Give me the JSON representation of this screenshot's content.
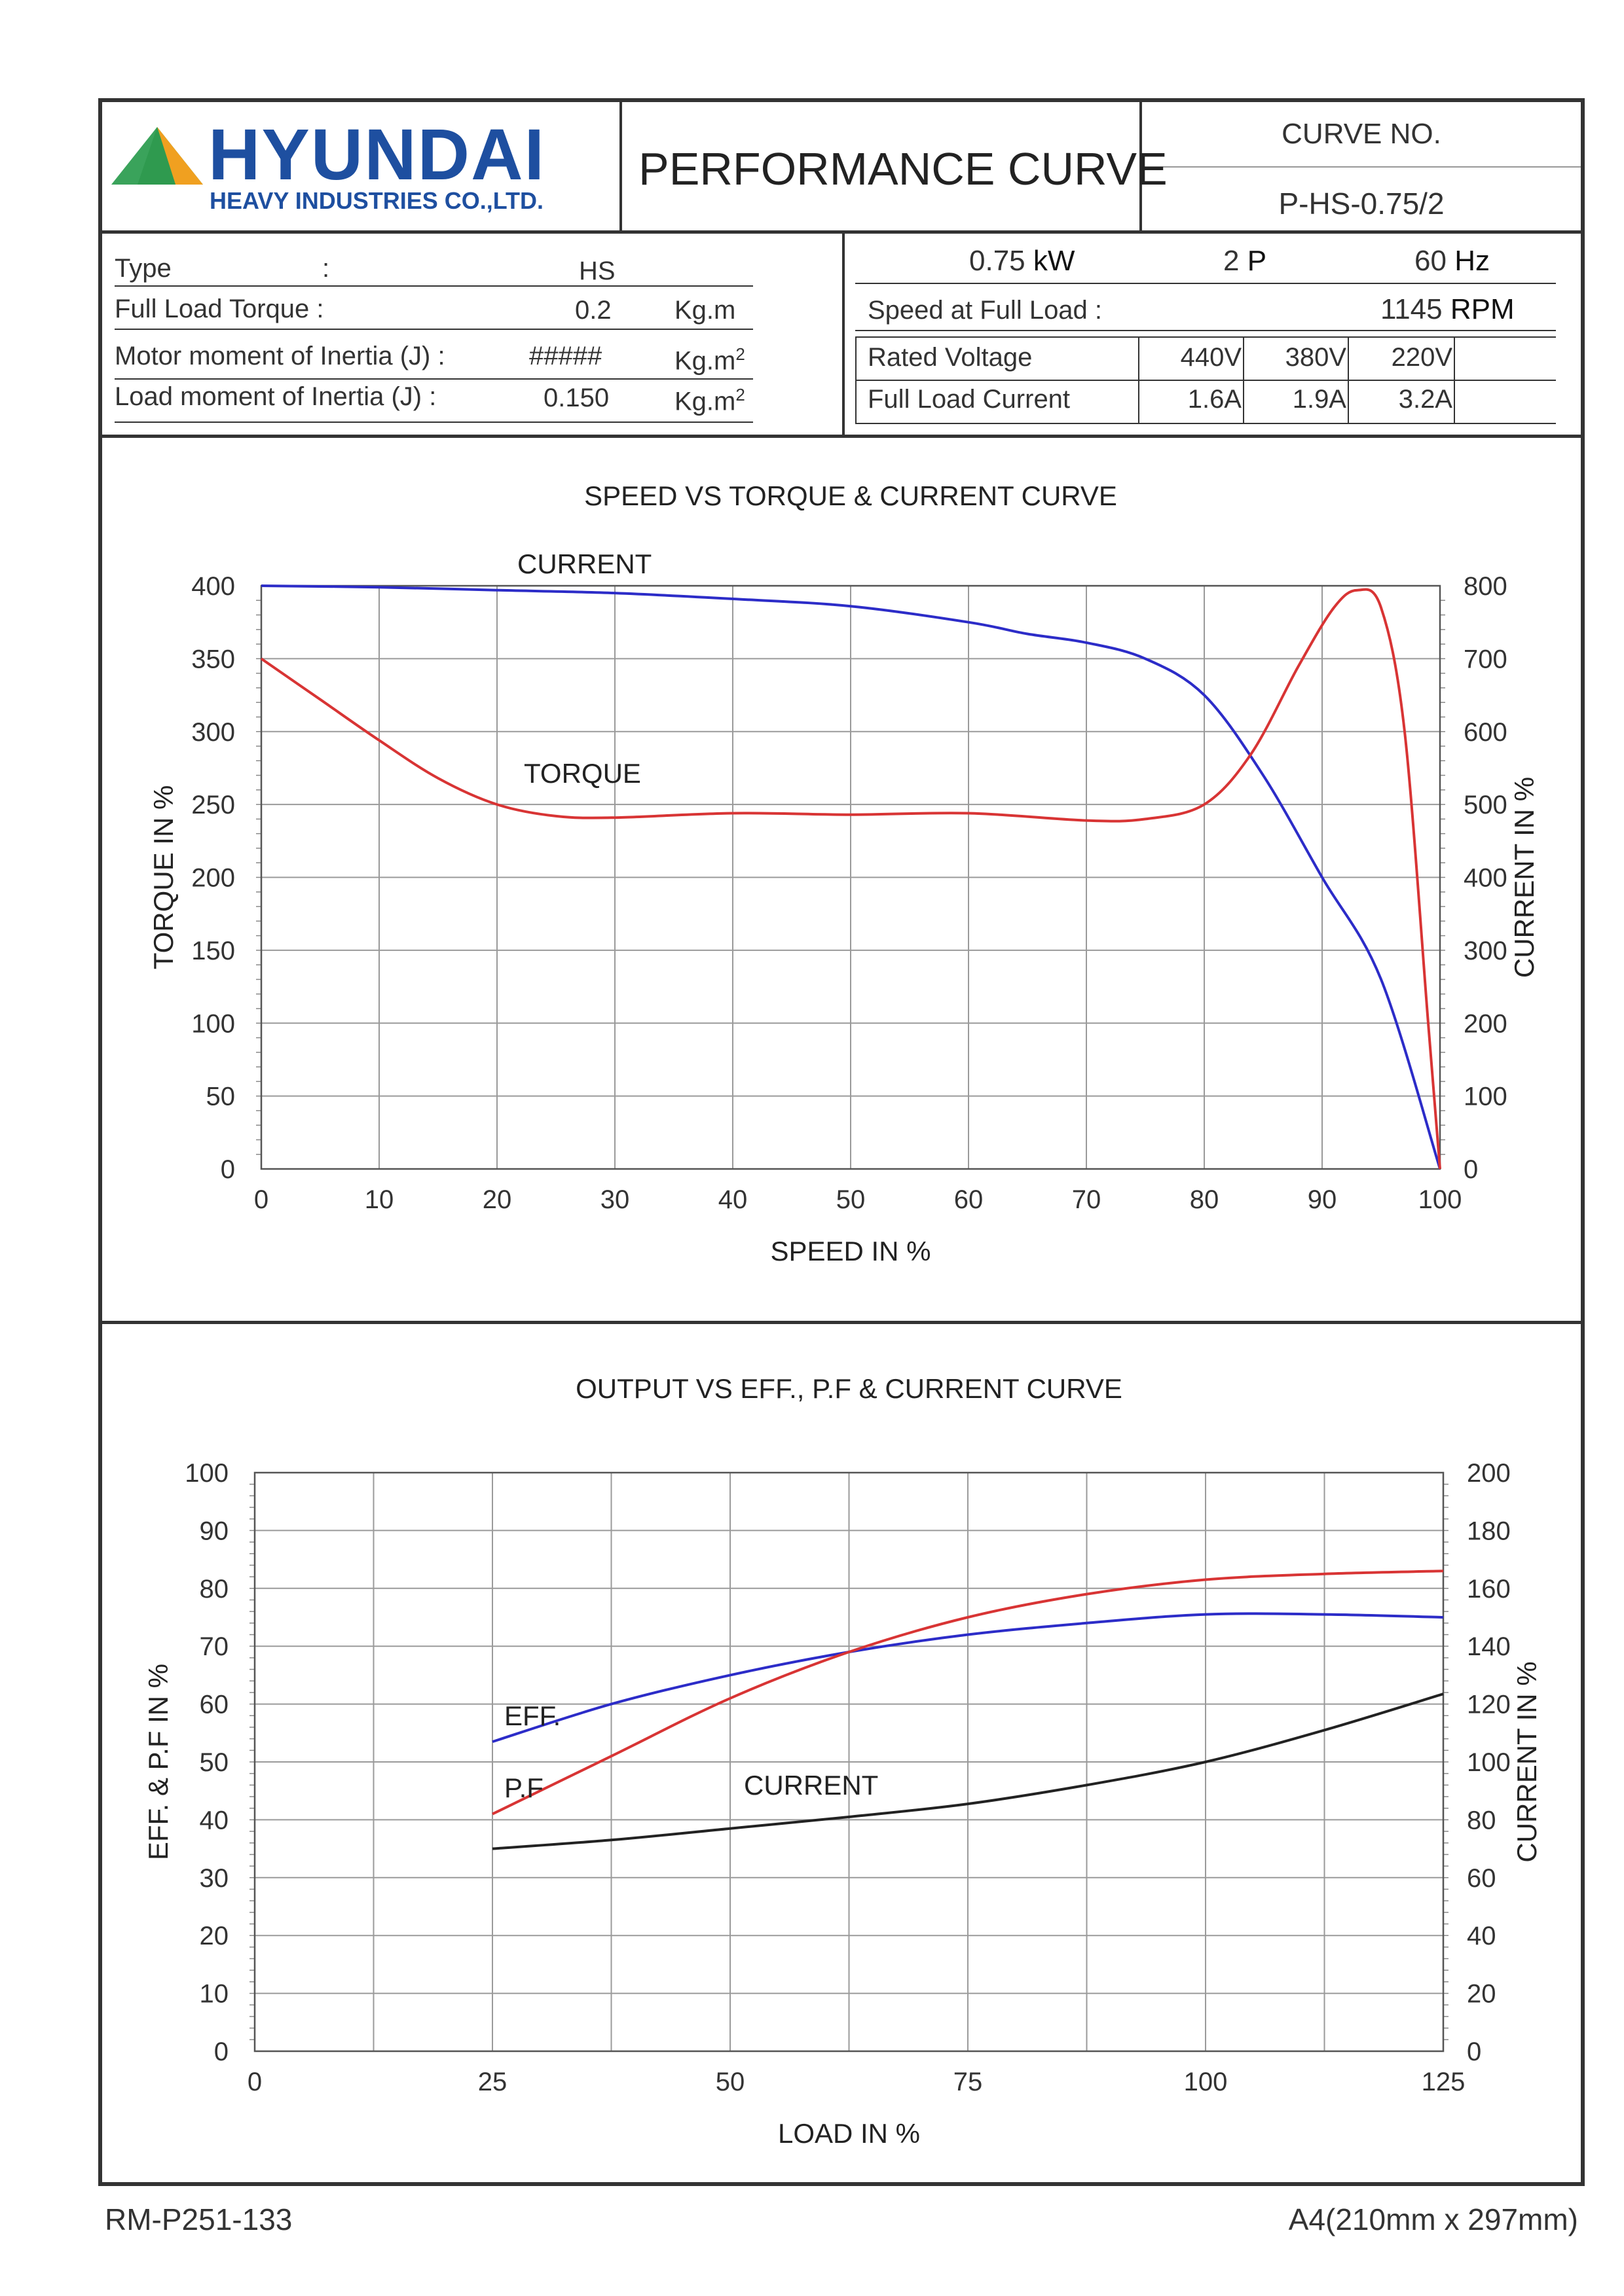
{
  "header": {
    "logo_text": "HYUNDAI",
    "logo_sub": "HEAVY INDUSTRIES CO.,LTD.",
    "title": "PERFORMANCE CURVE",
    "curve_no_label": "CURVE NO.",
    "curve_no": "P-HS-0.75/2",
    "colors": {
      "logo_blue": "#1e4fa0",
      "logo_green": "#3aa35b",
      "logo_orange": "#f0a020"
    }
  },
  "specs_left": {
    "rows": [
      {
        "label": "Type",
        "sep": ":",
        "value": "HS",
        "unit": ""
      },
      {
        "label": "Full Load Torque :",
        "sep": "",
        "value": "0.2",
        "unit": "Kg.m"
      },
      {
        "label": "Motor moment of Inertia (J) :",
        "sep": "",
        "value": "#####",
        "unit": "Kg.m",
        "unit_sup": "2"
      },
      {
        "label": "Load moment of Inertia (J) :",
        "sep": "",
        "value": "0.150",
        "unit": "Kg.m",
        "unit_sup": "2"
      }
    ]
  },
  "specs_right": {
    "power_value": "0.75",
    "power_unit": "kW",
    "poles_value": "2",
    "poles_unit": "P",
    "freq_value": "60",
    "freq_unit": "Hz",
    "speed_label": "Speed at Full Load :",
    "speed_value": "1145",
    "speed_unit": "RPM",
    "voltage_label": "Rated Voltage",
    "voltages": [
      "440V",
      "380V",
      "220V"
    ],
    "current_label": "Full Load Current",
    "currents": [
      "1.6A",
      "1.9A",
      "3.2A"
    ]
  },
  "chart_data": [
    {
      "type": "line",
      "title": "SPEED VS TORQUE & CURRENT CURVE",
      "xlabel": "SPEED IN %",
      "ylabel": "TORQUE IN %",
      "y2label": "CURRENT IN %",
      "xlim": [
        0,
        100
      ],
      "ylim": [
        0,
        400
      ],
      "y2lim": [
        0,
        800
      ],
      "xticks": [
        0,
        10,
        20,
        30,
        40,
        50,
        60,
        70,
        80,
        90,
        100
      ],
      "yticks": [
        0,
        50,
        100,
        150,
        200,
        250,
        300,
        350,
        400
      ],
      "y2ticks": [
        0,
        100,
        200,
        300,
        400,
        500,
        600,
        700,
        800
      ],
      "grid": true,
      "series": [
        {
          "name": "CURRENT",
          "axis": "right",
          "color": "#2c2cc8",
          "x": [
            0,
            10,
            20,
            30,
            40,
            50,
            60,
            65,
            70,
            75,
            80,
            85,
            90,
            95,
            100
          ],
          "y": [
            800,
            798,
            794,
            790,
            782,
            772,
            750,
            734,
            722,
            700,
            650,
            540,
            400,
            260,
            0
          ]
        },
        {
          "name": "TORQUE",
          "axis": "left",
          "color": "#d83434",
          "x": [
            0,
            5,
            10,
            15,
            20,
            25,
            30,
            40,
            50,
            60,
            70,
            75,
            80,
            84,
            88,
            91,
            93,
            95,
            97,
            99,
            100
          ],
          "y": [
            350,
            322,
            294,
            268,
            250,
            242,
            241,
            244,
            243,
            244,
            239,
            240,
            250,
            285,
            345,
            385,
            397,
            385,
            300,
            100,
            0
          ]
        }
      ]
    },
    {
      "type": "line",
      "title": "OUTPUT VS EFF., P.F & CURRENT CURVE",
      "xlabel": "LOAD IN %",
      "ylabel": "EFF. & P.F IN %",
      "y2label": "CURRENT IN %",
      "xlim": [
        0,
        125
      ],
      "ylim": [
        0,
        100
      ],
      "y2lim": [
        0,
        200
      ],
      "xticks": [
        0,
        25,
        50,
        75,
        100,
        125
      ],
      "yticks": [
        0,
        10,
        20,
        30,
        40,
        50,
        60,
        70,
        80,
        90,
        100
      ],
      "y2ticks": [
        0,
        20,
        40,
        60,
        80,
        100,
        120,
        140,
        160,
        180,
        200
      ],
      "grid": true,
      "series": [
        {
          "name": "EFF.",
          "axis": "left",
          "color": "#2c2cc8",
          "x": [
            25,
            37.5,
            50,
            62.5,
            75,
            87.5,
            100,
            112.5,
            125
          ],
          "y": [
            53.5,
            60,
            65,
            69,
            72,
            74,
            75.5,
            75.5,
            75
          ]
        },
        {
          "name": "P.F",
          "axis": "left",
          "color": "#d83434",
          "x": [
            25,
            37.5,
            50,
            62.5,
            75,
            87.5,
            100,
            112.5,
            125
          ],
          "y": [
            41,
            51,
            61,
            69,
            75,
            79,
            81.5,
            82.5,
            83
          ]
        },
        {
          "name": "CURRENT",
          "axis": "right",
          "color": "#222222",
          "x": [
            25,
            37.5,
            50,
            62.5,
            75,
            87.5,
            100,
            112.5,
            125
          ],
          "y": [
            70,
            73,
            77,
            81,
            85.5,
            92,
            100,
            111,
            123.5
          ]
        }
      ]
    }
  ],
  "footer": {
    "left": "RM-P251-133",
    "right": "A4(210mm x 297mm)"
  }
}
